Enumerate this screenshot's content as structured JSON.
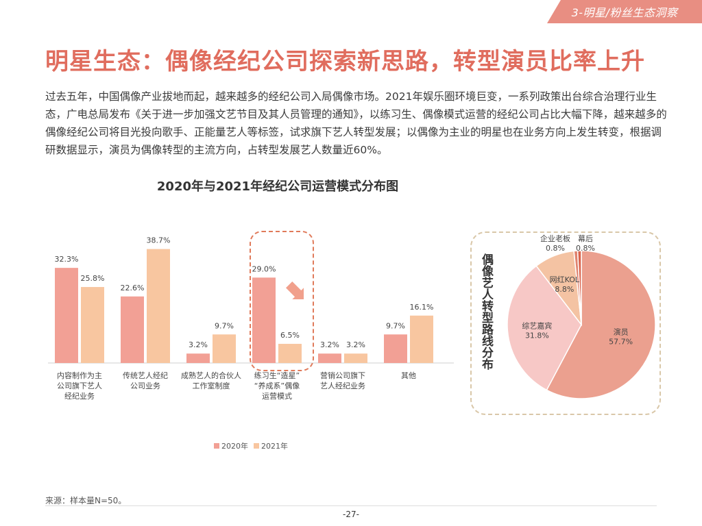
{
  "header": {
    "section_tab": "3-明星/粉丝生态洞察"
  },
  "page_title": "明星生态：偶像经纪公司探索新思路，转型演员比率上升",
  "paragraph": "过去五年，中国偶像产业拔地而起，越来越多的经纪公司入局偶像市场。2021年娱乐圈环境巨变，一系列政策出台综合治理行业生态，广电总局发布《关于进一步加强文艺节目及其人员管理的通知》，以练习生、偶像模式运营的经纪公司占比大幅下降，越来越多的偶像经纪公司将目光投向歌手、正能量艺人等标签，试求旗下艺人转型发展；以偶像为主业的明星也在业务方向上发生转变，根据调研数据显示，演员为偶像转型的主流方向，占转型发展艺人数量近60%。",
  "source": "来源：样本量N=50。",
  "page_number": "-27-",
  "colors": {
    "accent": "#e06d5e",
    "bar2020": "#f2a095",
    "bar2021": "#f8c6a0"
  },
  "chart_data": [
    {
      "type": "bar",
      "title": "2020年与2021年经纪公司运营模式分布图",
      "categories": [
        [
          "内容制作为主",
          "公司旗下艺人",
          "经纪业务"
        ],
        [
          "传统艺人经纪",
          "公司业务"
        ],
        [
          "成熟艺人的合伙人",
          "工作室制度"
        ],
        [
          "练习生“造星”",
          "“养成系”偶像",
          "运营模式"
        ],
        [
          "营销公司旗下",
          "艺人经纪业务"
        ],
        [
          "其他"
        ]
      ],
      "series": [
        {
          "name": "2020年",
          "values": [
            32.3,
            22.6,
            3.2,
            29.0,
            3.2,
            9.7
          ],
          "labels": [
            "32.3%",
            "22.6%",
            "3.2%",
            "29.0%",
            "3.2%",
            "9.7%"
          ]
        },
        {
          "name": "2021年",
          "values": [
            25.8,
            38.7,
            9.7,
            6.5,
            3.2,
            16.1
          ],
          "labels": [
            "25.8%",
            "38.7%",
            "9.7%",
            "6.5%",
            "3.2%",
            "16.1%"
          ]
        }
      ],
      "ylim": [
        0,
        40
      ],
      "legend": "bottom-center"
    },
    {
      "type": "pie",
      "title": "偶像艺人转型路线分布",
      "slices": [
        {
          "label": "演员",
          "value": 57.7,
          "text": "57.7%",
          "color": "#eba08f"
        },
        {
          "label": "综艺嘉宾",
          "value": 31.8,
          "text": "31.8%",
          "color": "#f7c8c6"
        },
        {
          "label": "网红KOL",
          "value": 8.8,
          "text": "8.8%",
          "color": "#f4c3a3"
        },
        {
          "label": "企业老板",
          "value": 0.8,
          "text": "0.8%",
          "color": "#e0836e"
        },
        {
          "label": "幕后",
          "value": 0.8,
          "text": "0.8%",
          "color": "#d9634c"
        }
      ]
    }
  ]
}
